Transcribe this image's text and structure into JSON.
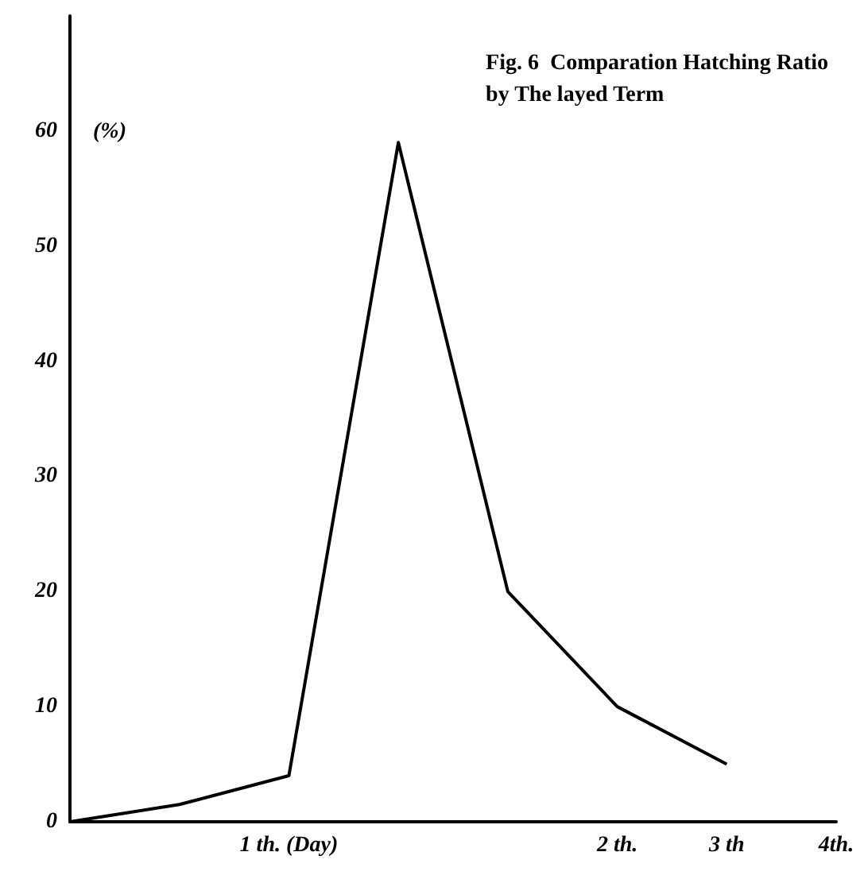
{
  "chart_data": {
    "type": "line",
    "title": "Fig. 6  Comparation Hatching Ratio\nby The layed Term",
    "ylabel": "(%)",
    "categories": [
      null,
      null,
      "1 th. (Day)",
      null,
      null,
      "2 th.",
      "3 th",
      "4th."
    ],
    "series": [
      {
        "color": "#000000",
        "values": [
          0,
          1.5,
          4,
          59,
          20,
          10,
          5,
          null
        ]
      }
    ],
    "ylim": [
      0,
      70
    ],
    "yticks": [
      0,
      10,
      20,
      30,
      40,
      50,
      60
    ],
    "grid": false,
    "marker": "none",
    "line_style": "solid"
  }
}
